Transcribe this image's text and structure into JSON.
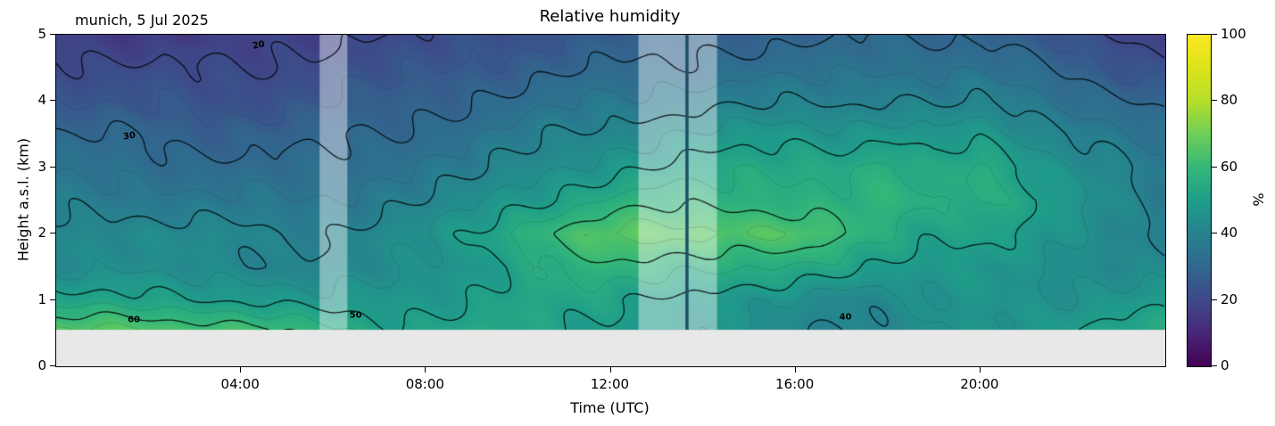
{
  "chart_data": {
    "type": "heatmap",
    "title": "Relative humidity",
    "annotation": "munich, 5 Jul 2025",
    "xlabel": "Time (UTC)",
    "ylabel": "Height a.s.l. (km)",
    "xlim": [
      0,
      24
    ],
    "ylim": [
      0,
      5
    ],
    "surface_km": 0.55,
    "x_hours": [
      0,
      1,
      2,
      3,
      4,
      5,
      6,
      7,
      8,
      9,
      10,
      11,
      12,
      13,
      14,
      15,
      16,
      17,
      18,
      19,
      20,
      21,
      22,
      23,
      24
    ],
    "y_km": [
      0.55,
      1.0,
      1.5,
      2.0,
      2.5,
      3.0,
      3.5,
      4.0,
      4.5,
      5.0
    ],
    "values_percent_rows_bottom_to_top": [
      [
        66,
        66,
        65,
        64,
        63,
        60,
        55,
        52,
        52,
        53,
        52,
        50,
        50,
        48,
        46,
        44,
        42,
        40,
        41,
        44,
        46,
        48,
        50,
        52,
        53
      ],
      [
        52,
        52,
        51,
        50,
        50,
        48,
        46,
        47,
        48,
        50,
        52,
        52,
        52,
        50,
        48,
        46,
        44,
        42,
        43,
        45,
        46,
        46,
        46,
        47,
        48
      ],
      [
        44,
        44,
        43,
        42,
        42,
        41,
        41,
        42,
        45,
        48,
        52,
        56,
        58,
        58,
        57,
        55,
        54,
        52,
        50,
        48,
        47,
        45,
        44,
        43,
        42
      ],
      [
        42,
        43,
        43,
        42,
        41,
        40,
        40,
        42,
        45,
        50,
        57,
        62,
        66,
        67,
        67,
        66,
        65,
        60,
        55,
        52,
        52,
        48,
        45,
        42,
        40
      ],
      [
        38,
        38,
        37,
        36,
        36,
        35,
        36,
        38,
        40,
        44,
        48,
        52,
        56,
        58,
        58,
        58,
        57,
        56,
        58,
        55,
        57,
        52,
        46,
        42,
        38
      ],
      [
        34,
        33,
        33,
        32,
        31,
        31,
        32,
        34,
        36,
        38,
        42,
        45,
        48,
        50,
        52,
        54,
        55,
        54,
        56,
        52,
        57,
        50,
        44,
        40,
        36
      ],
      [
        30,
        30,
        29,
        28,
        28,
        28,
        29,
        30,
        32,
        34,
        37,
        40,
        42,
        44,
        46,
        47,
        48,
        47,
        48,
        46,
        48,
        44,
        40,
        36,
        32
      ],
      [
        25,
        24,
        24,
        23,
        23,
        24,
        25,
        26,
        28,
        30,
        32,
        34,
        36,
        37,
        38,
        39,
        39,
        39,
        41,
        39,
        40,
        37,
        34,
        31,
        28
      ],
      [
        22,
        21,
        21,
        20,
        20,
        21,
        22,
        23,
        24,
        26,
        27,
        29,
        30,
        31,
        32,
        33,
        33,
        33,
        35,
        34,
        34,
        31,
        28,
        25,
        22
      ],
      [
        18,
        17,
        16,
        16,
        17,
        18,
        19,
        20,
        20,
        22,
        23,
        25,
        26,
        27,
        28,
        28,
        28,
        29,
        30,
        30,
        29,
        26,
        22,
        20,
        18
      ]
    ],
    "xticks": [
      {
        "hour": 4,
        "label": "04:00"
      },
      {
        "hour": 8,
        "label": "08:00"
      },
      {
        "hour": 12,
        "label": "12:00"
      },
      {
        "hour": 16,
        "label": "16:00"
      },
      {
        "hour": 20,
        "label": "20:00"
      }
    ],
    "yticks": [
      {
        "km": 0,
        "label": "0"
      },
      {
        "km": 1,
        "label": "1"
      },
      {
        "km": 2,
        "label": "2"
      },
      {
        "km": 3,
        "label": "3"
      },
      {
        "km": 4,
        "label": "4"
      },
      {
        "km": 5,
        "label": "5"
      }
    ],
    "contour_levels_major": [
      20,
      30,
      40,
      50,
      60
    ],
    "contour_levels_minor": [
      15,
      25,
      35,
      45,
      55,
      65
    ],
    "contour_labels": [
      {
        "text": "20",
        "hour": 4.4,
        "km": 4.82,
        "rot": -12
      },
      {
        "text": "30",
        "hour": 1.6,
        "km": 3.45,
        "rot": -8
      },
      {
        "text": "60",
        "hour": 1.7,
        "km": 0.68,
        "rot": 0
      },
      {
        "text": "50",
        "hour": 6.5,
        "km": 0.75,
        "rot": 0
      },
      {
        "text": "40",
        "hour": 17.1,
        "km": 0.73,
        "rot": 0
      }
    ],
    "highlight_bands": [
      {
        "start_hour": 5.7,
        "end_hour": 6.3
      },
      {
        "start_hour": 12.6,
        "end_hour": 14.3
      }
    ],
    "marker_line_hour": 13.65,
    "colorbar": {
      "label": "%",
      "min": 0,
      "max": 100,
      "ticks": [
        0,
        20,
        40,
        60,
        80,
        100
      ],
      "colormap": "viridis"
    },
    "colors": {
      "viridis_stops": [
        "#440154",
        "#482878",
        "#3e4989",
        "#31688e",
        "#26828e",
        "#1f9e89",
        "#35b779",
        "#6ece58",
        "#b5de2b",
        "#dce319",
        "#fde725"
      ],
      "below_surface": "#e8e8e8",
      "band_overlay": "rgba(255,255,255,0.42)",
      "marker_line": "#1d4e66",
      "contour_major": "rgba(0,0,0,0.85)",
      "contour_minor": "rgba(40,40,40,0.30)"
    }
  }
}
